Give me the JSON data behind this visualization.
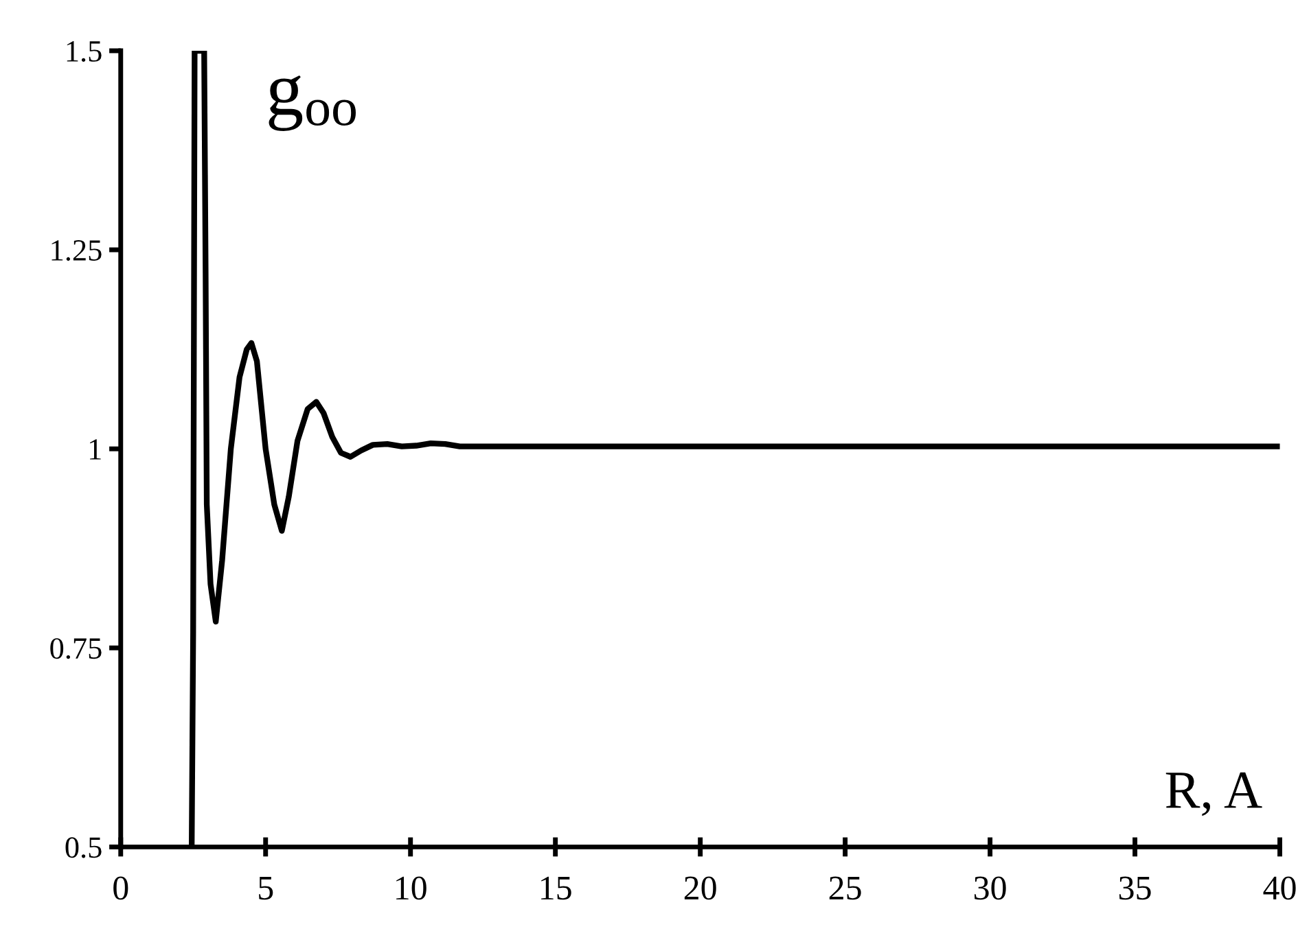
{
  "chart_data": {
    "type": "line",
    "title": "g$_{oo}$",
    "xlabel": "R, A",
    "x": [
      2.45,
      2.5,
      2.55,
      2.88,
      2.93,
      2.97,
      3.1,
      3.28,
      3.5,
      3.8,
      4.1,
      4.35,
      4.51,
      4.7,
      5.0,
      5.3,
      5.56,
      5.8,
      6.1,
      6.45,
      6.75,
      7.0,
      7.3,
      7.6,
      7.93,
      8.3,
      8.7,
      9.2,
      9.7,
      10.2,
      10.7,
      11.2,
      11.7,
      12.2,
      15,
      20,
      25,
      30,
      35,
      40
    ],
    "values": [
      0.5,
      0.77,
      1.5,
      1.5,
      1.22,
      0.93,
      0.83,
      0.783,
      0.86,
      1.0,
      1.09,
      1.125,
      1.133,
      1.11,
      1.0,
      0.93,
      0.897,
      0.94,
      1.01,
      1.05,
      1.059,
      1.045,
      1.015,
      0.995,
      0.99,
      0.998,
      1.005,
      1.006,
      1.003,
      1.004,
      1.007,
      1.006,
      1.003,
      1.003,
      1.003,
      1.003,
      1.003,
      1.003,
      1.003,
      1.003
    ],
    "color": "#000000",
    "xlim": [
      0,
      40
    ],
    "xticks": [
      0,
      5,
      10,
      15,
      20,
      25,
      30,
      35,
      40
    ],
    "ylim": [
      0.5,
      1.5
    ],
    "yticks": [
      0.5,
      0.75,
      1,
      1.25,
      1.5
    ],
    "grid": false,
    "legend": false,
    "marker": "none",
    "line_style": "solid"
  }
}
